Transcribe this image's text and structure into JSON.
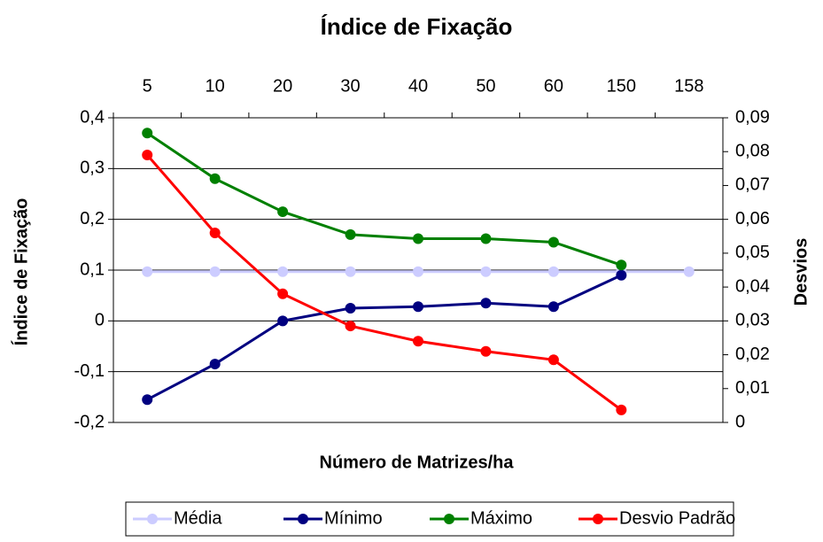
{
  "chart_data": {
    "type": "line",
    "title": "Índice de Fixação",
    "x_label": "Número de Matrizes/ha",
    "y_label": "Índice de Fixação",
    "y2_label": "Desvios",
    "categories": [
      "5",
      "10",
      "20",
      "30",
      "40",
      "50",
      "60",
      "150",
      "158"
    ],
    "series": [
      {
        "name": "Média",
        "color": "#ccccff",
        "values": [
          0.097,
          0.097,
          0.097,
          0.097,
          0.097,
          0.097,
          0.097,
          0.097,
          0.097
        ]
      },
      {
        "name": "Mínimo",
        "color": "#000080",
        "values": [
          -0.155,
          -0.085,
          0.0,
          0.025,
          0.028,
          0.035,
          0.028,
          0.09,
          null
        ]
      },
      {
        "name": "Máximo",
        "color": "#008000",
        "values": [
          0.37,
          0.28,
          0.215,
          0.17,
          0.162,
          0.162,
          0.155,
          0.11,
          null
        ]
      },
      {
        "name": "Desvio Padrão",
        "color": "#ff0000",
        "axis": "y2",
        "values": [
          0.079,
          0.056,
          0.038,
          0.0285,
          0.024,
          0.021,
          0.0185,
          0.0037,
          null
        ]
      }
    ],
    "ylim": [
      -0.2,
      0.4
    ],
    "yticks": [
      {
        "value": -0.2,
        "label": "-0,2"
      },
      {
        "value": -0.1,
        "label": "-0,1"
      },
      0,
      {
        "value": 0.1,
        "label": "0,1"
      },
      {
        "value": 0.2,
        "label": "0,2"
      },
      {
        "value": 0.3,
        "label": "0,3"
      },
      {
        "value": 0.4,
        "label": "0,4"
      }
    ],
    "y2lim": [
      0,
      0.09
    ],
    "y2ticks": [
      0,
      {
        "value": 0.01,
        "label": "0,01"
      },
      {
        "value": 0.02,
        "label": "0,02"
      },
      {
        "value": 0.03,
        "label": "0,03"
      },
      {
        "value": 0.04,
        "label": "0,04"
      },
      {
        "value": 0.05,
        "label": "0,05"
      },
      {
        "value": 0.06,
        "label": "0,06"
      },
      {
        "value": 0.07,
        "label": "0,07"
      },
      {
        "value": 0.08,
        "label": "0,08"
      },
      {
        "value": 0.09,
        "label": "0,09"
      }
    ],
    "grid": true,
    "legend": "bottom"
  }
}
